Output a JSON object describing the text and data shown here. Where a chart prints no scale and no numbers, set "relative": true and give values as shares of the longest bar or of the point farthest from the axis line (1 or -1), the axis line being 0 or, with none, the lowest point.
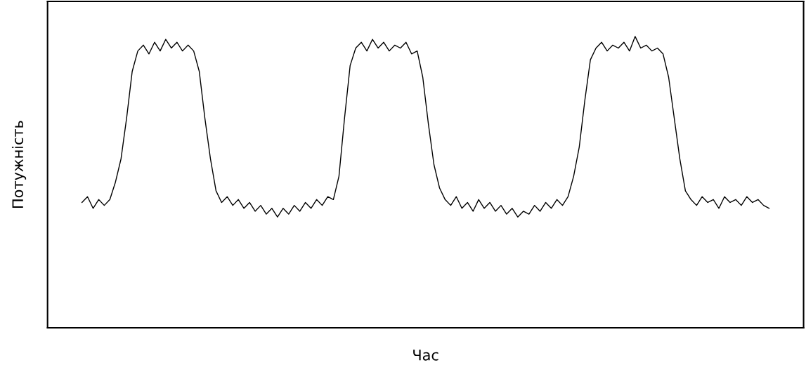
{
  "chart_data": {
    "type": "line",
    "relative": true,
    "xlabel": "Час",
    "ylabel": "Потужність",
    "tick_labels": false,
    "categories": [
      null,
      null,
      null,
      null,
      null,
      null,
      null,
      null,
      null,
      null,
      null,
      null,
      null,
      null,
      null,
      null,
      null,
      null,
      null,
      null,
      null,
      null,
      null,
      null,
      null,
      null,
      null,
      null,
      null,
      null,
      null,
      null,
      null,
      null,
      null,
      null,
      null,
      null,
      null,
      null,
      null,
      null,
      null,
      null,
      null,
      null,
      null,
      null,
      null,
      null,
      null,
      null,
      null,
      null,
      null,
      null,
      null,
      null,
      null,
      null,
      null,
      null,
      null,
      null,
      null,
      null,
      null,
      null,
      null,
      null,
      null,
      null,
      null,
      null,
      null,
      null,
      null,
      null,
      null,
      null,
      null,
      null,
      null,
      null,
      null,
      null,
      null,
      null,
      null,
      null,
      null,
      null,
      null,
      null,
      null,
      null,
      null,
      null,
      null,
      null,
      null,
      null,
      null,
      null,
      null,
      null,
      null,
      null,
      null,
      null,
      null,
      null,
      null,
      null,
      null,
      null,
      null,
      null,
      null,
      null,
      null,
      null,
      null,
      null
    ],
    "series": [
      {
        "color": "#000000",
        "values": [
          0.43,
          0.45,
          0.41,
          0.44,
          0.42,
          0.44,
          0.5,
          0.58,
          0.72,
          0.88,
          0.95,
          0.97,
          0.94,
          0.98,
          0.95,
          0.99,
          0.96,
          0.98,
          0.95,
          0.97,
          0.95,
          0.88,
          0.72,
          0.58,
          0.47,
          0.43,
          0.45,
          0.42,
          0.44,
          0.41,
          0.43,
          0.4,
          0.42,
          0.39,
          0.41,
          0.38,
          0.41,
          0.39,
          0.42,
          0.4,
          0.43,
          0.41,
          0.44,
          0.42,
          0.45,
          0.44,
          0.52,
          0.72,
          0.9,
          0.96,
          0.98,
          0.95,
          0.99,
          0.96,
          0.98,
          0.95,
          0.97,
          0.96,
          0.98,
          0.94,
          0.95,
          0.86,
          0.7,
          0.56,
          0.48,
          0.44,
          0.42,
          0.45,
          0.41,
          0.43,
          0.4,
          0.44,
          0.41,
          0.43,
          0.4,
          0.42,
          0.39,
          0.41,
          0.38,
          0.4,
          0.39,
          0.42,
          0.4,
          0.43,
          0.41,
          0.44,
          0.42,
          0.45,
          0.52,
          0.62,
          0.78,
          0.92,
          0.96,
          0.98,
          0.95,
          0.97,
          0.96,
          0.98,
          0.95,
          1.0,
          0.96,
          0.97,
          0.95,
          0.96,
          0.94,
          0.86,
          0.72,
          0.58,
          0.47,
          0.44,
          0.42,
          0.45,
          0.43,
          0.44,
          0.41,
          0.45,
          0.43,
          0.44,
          0.42,
          0.45,
          0.43,
          0.44,
          0.42,
          0.41
        ]
      }
    ]
  }
}
